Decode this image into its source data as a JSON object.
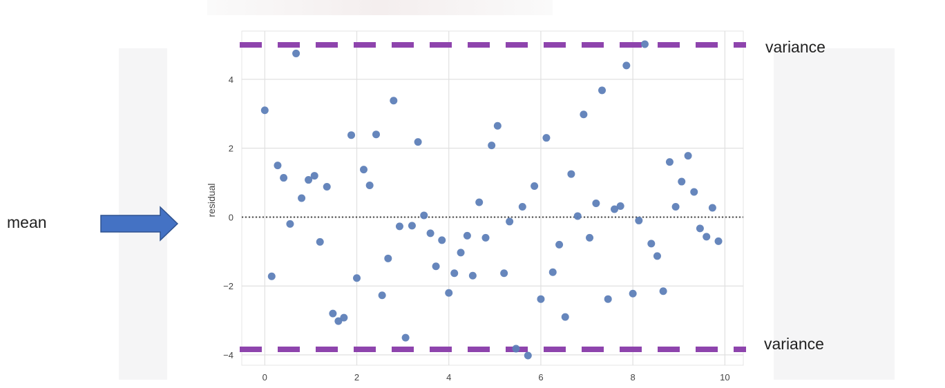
{
  "annotations": {
    "mean_label": "mean",
    "variance_top_label": "variance",
    "variance_bottom_label": "variance"
  },
  "colors": {
    "point": "#5e7fb8",
    "variance_line": "#8e44ad",
    "mean_line": "#444444",
    "grid": "#e0e0e0",
    "arrow": "#4472c4"
  },
  "chart_data": {
    "type": "scatter",
    "title": "",
    "xlabel": "",
    "ylabel": "residual",
    "xlim": [
      -0.5,
      10.4
    ],
    "ylim": [
      -4.3,
      5.4
    ],
    "xticks": [
      0,
      2,
      4,
      6,
      8,
      10
    ],
    "yticks": [
      -4,
      -2,
      0,
      2,
      4
    ],
    "grid": true,
    "reference_lines": [
      {
        "axis": "y",
        "value": 0,
        "style": "dotted"
      },
      {
        "axis": "y",
        "value": 5.0,
        "style": "dashed"
      },
      {
        "axis": "y",
        "value": -3.84,
        "style": "dashed"
      }
    ],
    "points": [
      [
        0.0,
        3.1
      ],
      [
        0.15,
        -1.72
      ],
      [
        0.28,
        1.5
      ],
      [
        0.41,
        1.14
      ],
      [
        0.55,
        -0.2
      ],
      [
        0.68,
        4.75
      ],
      [
        0.8,
        0.55
      ],
      [
        0.95,
        1.08
      ],
      [
        1.08,
        1.2
      ],
      [
        1.2,
        -0.72
      ],
      [
        1.35,
        0.88
      ],
      [
        1.48,
        -2.8
      ],
      [
        1.6,
        -3.02
      ],
      [
        1.72,
        -2.92
      ],
      [
        1.88,
        2.38
      ],
      [
        2.0,
        -1.77
      ],
      [
        2.15,
        1.38
      ],
      [
        2.28,
        0.92
      ],
      [
        2.42,
        2.4
      ],
      [
        2.55,
        -2.27
      ],
      [
        2.68,
        -1.2
      ],
      [
        2.8,
        3.38
      ],
      [
        2.93,
        -0.27
      ],
      [
        3.06,
        -3.5
      ],
      [
        3.2,
        -0.25
      ],
      [
        3.33,
        2.18
      ],
      [
        3.46,
        0.05
      ],
      [
        3.6,
        -0.47
      ],
      [
        3.72,
        -1.43
      ],
      [
        3.85,
        -0.67
      ],
      [
        4.0,
        -2.2
      ],
      [
        4.12,
        -1.63
      ],
      [
        4.26,
        -1.03
      ],
      [
        4.4,
        -0.54
      ],
      [
        4.52,
        -1.7
      ],
      [
        4.66,
        0.43
      ],
      [
        4.8,
        -0.6
      ],
      [
        4.93,
        2.08
      ],
      [
        5.06,
        2.65
      ],
      [
        5.2,
        -1.63
      ],
      [
        5.32,
        -0.13
      ],
      [
        5.46,
        -3.82
      ],
      [
        5.6,
        0.3
      ],
      [
        5.72,
        -4.02
      ],
      [
        5.86,
        0.9
      ],
      [
        6.0,
        -2.38
      ],
      [
        6.12,
        2.3
      ],
      [
        6.26,
        -1.6
      ],
      [
        6.4,
        -0.8
      ],
      [
        6.53,
        -2.9
      ],
      [
        6.66,
        1.25
      ],
      [
        6.8,
        0.03
      ],
      [
        6.93,
        2.98
      ],
      [
        7.06,
        -0.6
      ],
      [
        7.2,
        0.4
      ],
      [
        7.33,
        3.68
      ],
      [
        7.46,
        -2.38
      ],
      [
        7.6,
        0.23
      ],
      [
        7.73,
        0.32
      ],
      [
        7.86,
        4.4
      ],
      [
        8.0,
        -2.22
      ],
      [
        8.13,
        -0.1
      ],
      [
        8.26,
        5.02
      ],
      [
        8.4,
        -0.77
      ],
      [
        8.53,
        -1.13
      ],
      [
        8.66,
        -2.15
      ],
      [
        8.8,
        1.6
      ],
      [
        8.93,
        0.3
      ],
      [
        9.06,
        1.03
      ],
      [
        9.2,
        1.78
      ],
      [
        9.33,
        0.73
      ],
      [
        9.46,
        -0.33
      ],
      [
        9.6,
        -0.57
      ],
      [
        9.73,
        0.27
      ],
      [
        9.86,
        -0.7
      ]
    ]
  }
}
